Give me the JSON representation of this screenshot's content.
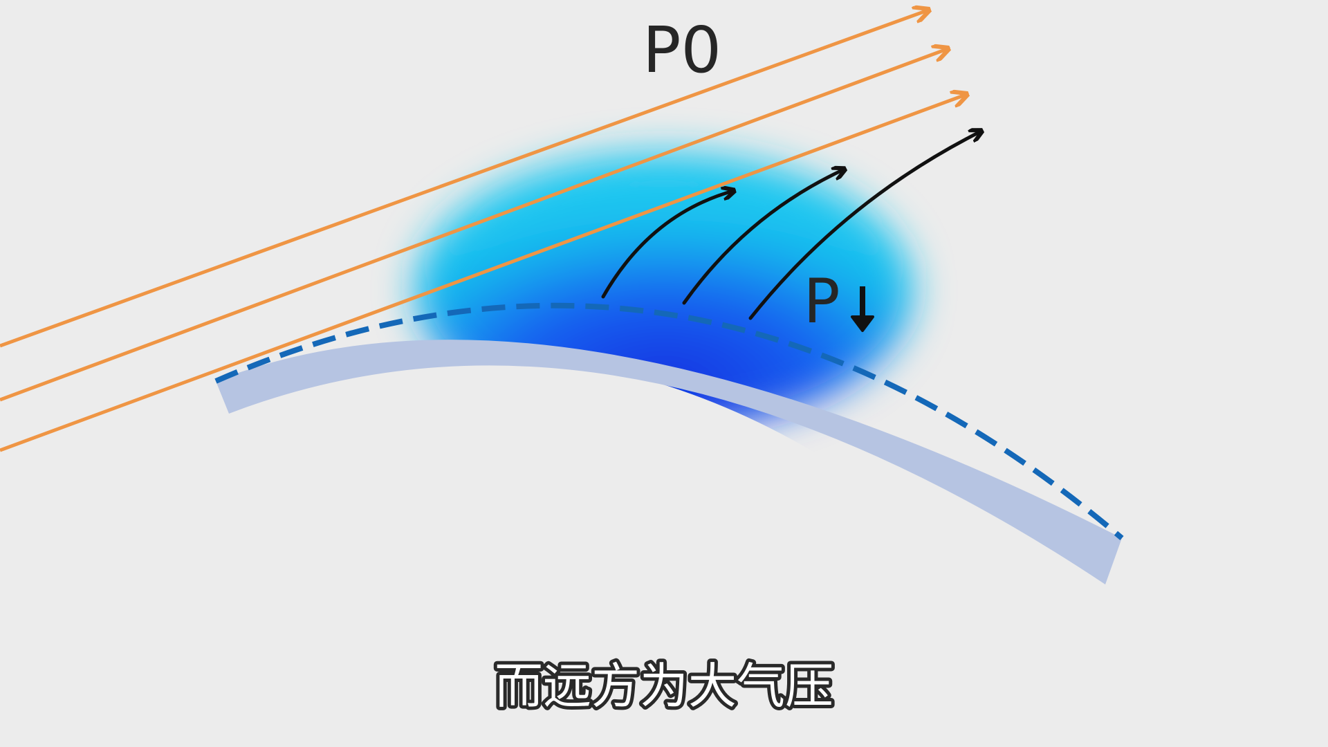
{
  "labels": {
    "outer_pressure": "P0",
    "inner_pressure": "P"
  },
  "subtitle": "而远方为大气压"
}
